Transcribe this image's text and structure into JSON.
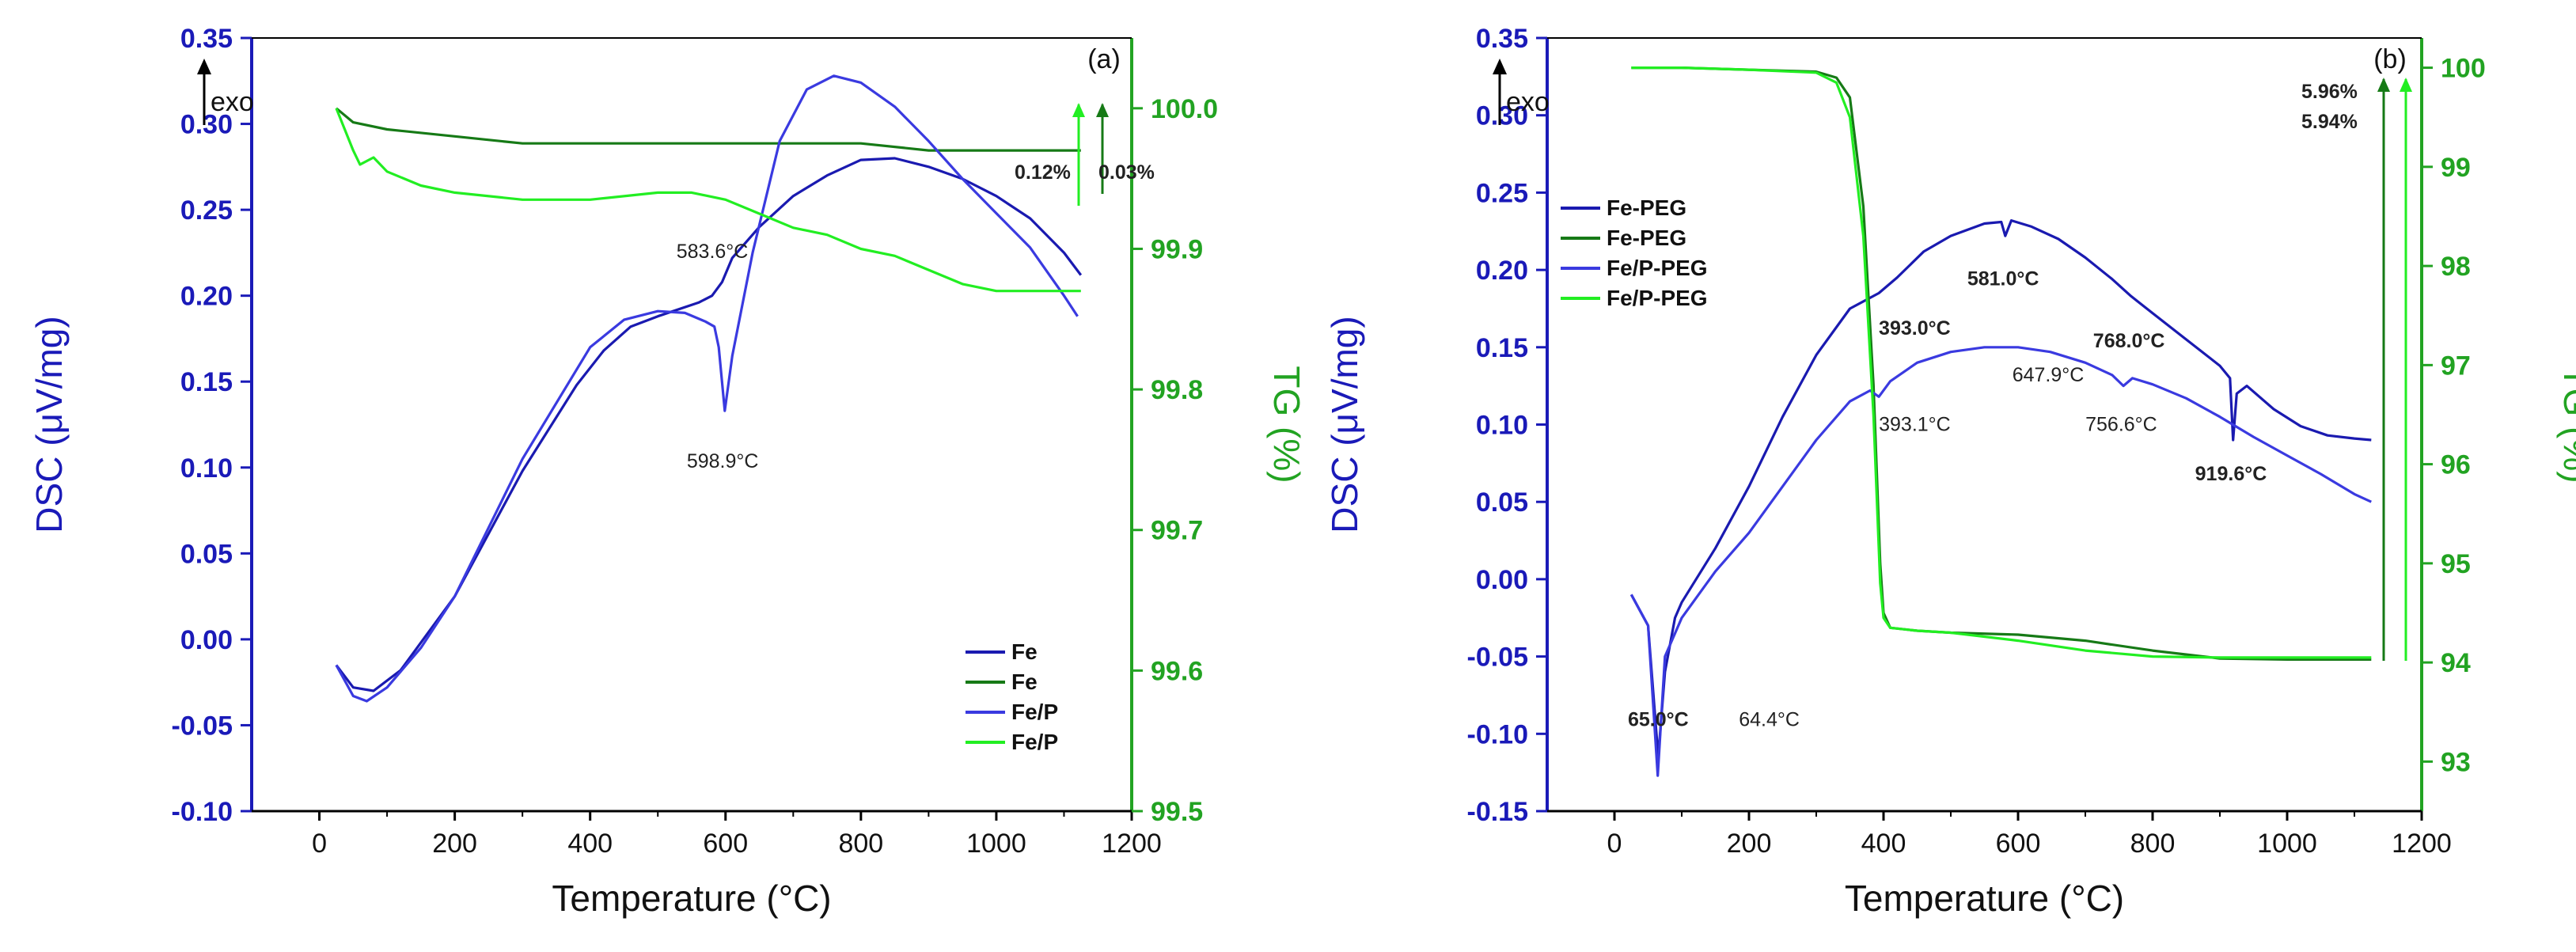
{
  "colors": {
    "dsc_axis": "#1a1ab8",
    "tg_axis": "#22a322",
    "fe_dsc": "#1a1ab0",
    "fe_tg": "#167a16",
    "fep_dsc": "#3a3ae0",
    "fep_tg": "#22ee22"
  },
  "chart_data": [
    {
      "type": "line",
      "panel_label": "(a)",
      "exo_label": "exo",
      "xlabel": "Temperature (°C)",
      "ylabel_left": "DSC (μV/mg)",
      "ylabel_right": "TG (%)",
      "xlim": [
        -100,
        1200
      ],
      "ylim_left": [
        -0.1,
        0.35
      ],
      "ylim_right": [
        99.5,
        100.05
      ],
      "x_ticks": [
        "0",
        "200",
        "400",
        "600",
        "800",
        "1000",
        "1200"
      ],
      "y_left_ticks": [
        "-0.10",
        "-0.05",
        "0.00",
        "0.05",
        "0.10",
        "0.15",
        "0.20",
        "0.25",
        "0.30",
        "0.35"
      ],
      "y_right_ticks": [
        "99.5",
        "99.6",
        "99.7",
        "99.8",
        "99.9",
        "100.0"
      ],
      "series": [
        {
          "name": "Fe",
          "axis": "left",
          "color": "#1a1ab0",
          "x": [
            25,
            50,
            80,
            120,
            200,
            300,
            380,
            420,
            460,
            500,
            560,
            580,
            595,
            610,
            650,
            700,
            750,
            800,
            850,
            900,
            950,
            1000,
            1050,
            1100,
            1125
          ],
          "y": [
            -0.015,
            -0.028,
            -0.03,
            -0.018,
            0.025,
            0.098,
            0.148,
            0.168,
            0.182,
            0.188,
            0.196,
            0.2,
            0.208,
            0.222,
            0.24,
            0.258,
            0.27,
            0.279,
            0.28,
            0.275,
            0.268,
            0.258,
            0.245,
            0.225,
            0.212
          ]
        },
        {
          "name": "Fe",
          "axis": "right",
          "color": "#167a16",
          "x": [
            25,
            50,
            100,
            200,
            300,
            400,
            500,
            600,
            700,
            800,
            900,
            1000,
            1100,
            1125
          ],
          "y": [
            100.0,
            99.99,
            99.985,
            99.98,
            99.975,
            99.975,
            99.975,
            99.975,
            99.975,
            99.975,
            99.97,
            99.97,
            99.97,
            99.97
          ]
        },
        {
          "name": "Fe/P",
          "axis": "left",
          "color": "#3a3ae0",
          "x": [
            25,
            50,
            70,
            100,
            150,
            200,
            300,
            400,
            450,
            500,
            540,
            570,
            583.6,
            590,
            598.9,
            610,
            640,
            680,
            720,
            760,
            800,
            850,
            900,
            950,
            1000,
            1050,
            1100,
            1120
          ],
          "y": [
            -0.015,
            -0.033,
            -0.036,
            -0.028,
            -0.005,
            0.025,
            0.105,
            0.17,
            0.186,
            0.191,
            0.19,
            0.185,
            0.182,
            0.17,
            0.133,
            0.165,
            0.225,
            0.29,
            0.32,
            0.328,
            0.324,
            0.31,
            0.29,
            0.268,
            0.248,
            0.228,
            0.2,
            0.188
          ]
        },
        {
          "name": "Fe/P",
          "axis": "right",
          "color": "#22ee22",
          "x": [
            25,
            50,
            60,
            80,
            100,
            150,
            200,
            300,
            400,
            500,
            550,
            600,
            650,
            700,
            750,
            800,
            850,
            900,
            950,
            1000,
            1050,
            1100,
            1125
          ],
          "y": [
            100.0,
            99.97,
            99.96,
            99.965,
            99.955,
            99.945,
            99.94,
            99.935,
            99.935,
            99.94,
            99.94,
            99.935,
            99.925,
            99.915,
            99.91,
            99.9,
            99.895,
            99.885,
            99.875,
            99.87,
            99.87,
            99.87,
            99.87
          ]
        }
      ],
      "annotations": [
        {
          "text": "583.6°C",
          "x": 583.6,
          "axis": "left",
          "y": 0.222,
          "bold": false
        },
        {
          "text": "598.9°C",
          "x": 598.9,
          "axis": "left",
          "y": 0.1,
          "bold": false
        },
        {
          "text": "0.12%",
          "color": "#22ee22"
        },
        {
          "text": "0.03%",
          "color": "#167a16"
        }
      ],
      "legend": {
        "position": "bottom-right",
        "entries": [
          "Fe",
          "Fe",
          "Fe/P",
          "Fe/P"
        ]
      }
    },
    {
      "type": "line",
      "panel_label": "(b)",
      "exo_label": "exo",
      "xlabel": "Temperature (°C)",
      "ylabel_left": "DSC (μV/mg)",
      "ylabel_right": "TG (%)",
      "xlim": [
        -100,
        1200
      ],
      "ylim_left": [
        -0.15,
        0.35
      ],
      "ylim_right": [
        92.5,
        100.3
      ],
      "x_ticks": [
        "0",
        "200",
        "400",
        "600",
        "800",
        "1000",
        "1200"
      ],
      "y_left_ticks": [
        "-0.15",
        "-0.10",
        "-0.05",
        "0.00",
        "0.05",
        "0.10",
        "0.15",
        "0.20",
        "0.25",
        "0.30",
        "0.35"
      ],
      "y_right_ticks": [
        "93",
        "94",
        "95",
        "96",
        "97",
        "98",
        "99",
        "100"
      ],
      "series": [
        {
          "name": "Fe-PEG",
          "axis": "left",
          "color": "#1a1ab0",
          "x": [
            25,
            50,
            65,
            75,
            90,
            100,
            150,
            200,
            250,
            300,
            350,
            393,
            420,
            460,
            500,
            550,
            575,
            581,
            590,
            620,
            660,
            700,
            740,
            768,
            800,
            850,
            900,
            915,
            919.6,
            925,
            940,
            980,
            1020,
            1060,
            1100,
            1125
          ],
          "y": [
            -0.01,
            -0.03,
            -0.115,
            -0.06,
            -0.025,
            -0.015,
            0.02,
            0.06,
            0.105,
            0.145,
            0.175,
            0.185,
            0.195,
            0.212,
            0.222,
            0.23,
            0.231,
            0.222,
            0.232,
            0.228,
            0.22,
            0.208,
            0.194,
            0.183,
            0.172,
            0.155,
            0.138,
            0.13,
            0.09,
            0.12,
            0.125,
            0.11,
            0.099,
            0.093,
            0.091,
            0.09
          ]
        },
        {
          "name": "Fe-PEG",
          "axis": "right",
          "color": "#167a16",
          "x": [
            25,
            100,
            200,
            300,
            330,
            350,
            370,
            385,
            395,
            400,
            410,
            450,
            500,
            600,
            700,
            800,
            900,
            1000,
            1100,
            1125
          ],
          "y": [
            100.0,
            100.0,
            99.98,
            99.96,
            99.9,
            99.7,
            98.6,
            96.8,
            95.0,
            94.5,
            94.35,
            94.32,
            94.3,
            94.28,
            94.22,
            94.12,
            94.04,
            94.03,
            94.03,
            94.03
          ]
        },
        {
          "name": "Fe/P-PEG",
          "axis": "left",
          "color": "#3a3ae0",
          "x": [
            25,
            50,
            64.4,
            75,
            100,
            150,
            200,
            250,
            300,
            350,
            380,
            393.1,
            410,
            450,
            500,
            550,
            600,
            647.9,
            700,
            740,
            756.6,
            770,
            800,
            850,
            900,
            950,
            1000,
            1050,
            1100,
            1125
          ],
          "y": [
            -0.01,
            -0.03,
            -0.127,
            -0.05,
            -0.025,
            0.005,
            0.03,
            0.06,
            0.09,
            0.115,
            0.122,
            0.118,
            0.128,
            0.14,
            0.147,
            0.15,
            0.15,
            0.147,
            0.14,
            0.132,
            0.125,
            0.13,
            0.126,
            0.117,
            0.105,
            0.092,
            0.08,
            0.068,
            0.055,
            0.05
          ]
        },
        {
          "name": "Fe/P-PEG",
          "axis": "right",
          "color": "#22ee22",
          "x": [
            25,
            100,
            200,
            300,
            330,
            350,
            370,
            385,
            395,
            400,
            410,
            450,
            500,
            600,
            700,
            800,
            900,
            1000,
            1100,
            1125
          ],
          "y": [
            100.0,
            100.0,
            99.98,
            99.95,
            99.85,
            99.5,
            98.3,
            96.5,
            94.8,
            94.45,
            94.35,
            94.32,
            94.3,
            94.22,
            94.12,
            94.06,
            94.05,
            94.05,
            94.05,
            94.05
          ]
        }
      ],
      "annotations": [
        {
          "text": "581.0°C",
          "x": 581.0,
          "axis": "left",
          "y": 0.19,
          "bold": true
        },
        {
          "text": "393.0°C",
          "x": 393.0,
          "axis": "left",
          "y": 0.158,
          "bold": true
        },
        {
          "text": "768.0°C",
          "x": 768.0,
          "axis": "left",
          "y": 0.15,
          "bold": true
        },
        {
          "text": "647.9°C",
          "x": 647.9,
          "axis": "left",
          "y": 0.128,
          "bold": false
        },
        {
          "text": "393.1°C",
          "x": 393.1,
          "axis": "left",
          "y": 0.096,
          "bold": false
        },
        {
          "text": "756.6°C",
          "x": 756.6,
          "axis": "left",
          "y": 0.096,
          "bold": false
        },
        {
          "text": "919.6°C",
          "x": 919.6,
          "axis": "left",
          "y": 0.064,
          "bold": true
        },
        {
          "text": "65.0°C",
          "x": 20,
          "axis": "left",
          "y": -0.095,
          "bold": true
        },
        {
          "text": "64.4°C",
          "x": 185,
          "axis": "left",
          "y": -0.095,
          "bold": false
        },
        {
          "text": "5.96%",
          "color": "#167a16"
        },
        {
          "text": "5.94%",
          "color": "#22ee22"
        }
      ],
      "legend": {
        "position": "top-left",
        "entries": [
          "Fe-PEG",
          "Fe-PEG",
          "Fe/P-PEG",
          "Fe/P-PEG"
        ]
      }
    }
  ]
}
